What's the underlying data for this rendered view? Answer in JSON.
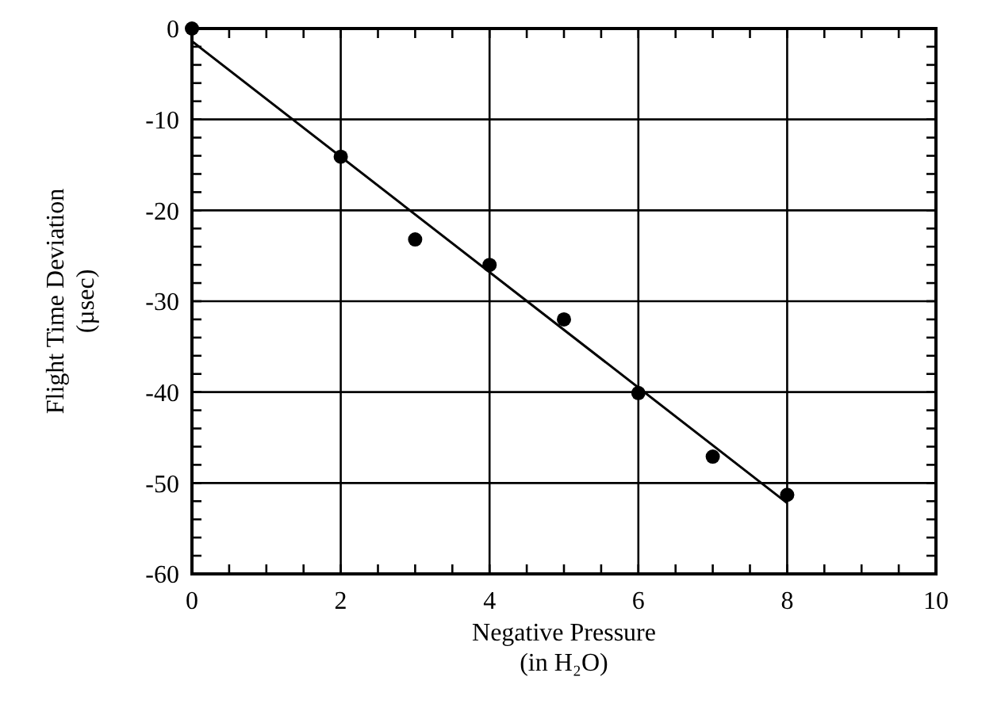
{
  "chart_data": {
    "type": "scatter",
    "xlabel": "Negative Pressure\n(in H₂O)",
    "ylabel": "Flight Time Deviation\n(µsec)",
    "x": [
      0,
      2,
      3,
      4,
      5,
      6,
      7,
      8
    ],
    "series": [
      {
        "color": "#000000",
        "marker": "circle",
        "values": [
          0,
          -14.1,
          -23.2,
          -26.0,
          -32.0,
          -40.1,
          -47.1,
          -51.3
        ]
      },
      {
        "type": "line",
        "color": "#000000",
        "x": [
          0,
          8
        ],
        "values": [
          -1.4,
          -52.2
        ]
      }
    ],
    "xlim": [
      0,
      10
    ],
    "ylim": [
      -60,
      0
    ],
    "xticks": [
      0,
      {
        "value": 0.5,
        "label": null
      },
      {
        "value": 1,
        "label": null
      },
      {
        "value": 1.5,
        "label": null
      },
      2,
      {
        "value": 2.5,
        "label": null
      },
      {
        "value": 3,
        "label": null
      },
      {
        "value": 3.5,
        "label": null
      },
      4,
      {
        "value": 4.5,
        "label": null
      },
      {
        "value": 5,
        "label": null
      },
      {
        "value": 5.5,
        "label": null
      },
      6,
      {
        "value": 6.5,
        "label": null
      },
      {
        "value": 7,
        "label": null
      },
      {
        "value": 7.5,
        "label": null
      },
      8,
      {
        "value": 8.5,
        "label": null
      },
      {
        "value": 9,
        "label": null
      },
      {
        "value": 9.5,
        "label": null
      },
      10
    ],
    "yticks": [
      -60,
      {
        "value": -58,
        "label": null
      },
      {
        "value": -56,
        "label": null
      },
      {
        "value": -54,
        "label": null
      },
      {
        "value": -52,
        "label": null
      },
      -50,
      {
        "value": -48,
        "label": null
      },
      {
        "value": -46,
        "label": null
      },
      {
        "value": -44,
        "label": null
      },
      {
        "value": -42,
        "label": null
      },
      -40,
      {
        "value": -38,
        "label": null
      },
      {
        "value": -36,
        "label": null
      },
      {
        "value": -34,
        "label": null
      },
      {
        "value": -32,
        "label": null
      },
      -30,
      {
        "value": -28,
        "label": null
      },
      {
        "value": -26,
        "label": null
      },
      {
        "value": -24,
        "label": null
      },
      {
        "value": -22,
        "label": null
      },
      -20,
      {
        "value": -18,
        "label": null
      },
      {
        "value": -16,
        "label": null
      },
      {
        "value": -14,
        "label": null
      },
      {
        "value": -12,
        "label": null
      },
      -10,
      {
        "value": -8,
        "label": null
      },
      {
        "value": -6,
        "label": null
      },
      {
        "value": -4,
        "label": null
      },
      {
        "value": -2,
        "label": null
      },
      0
    ],
    "grid": true
  }
}
